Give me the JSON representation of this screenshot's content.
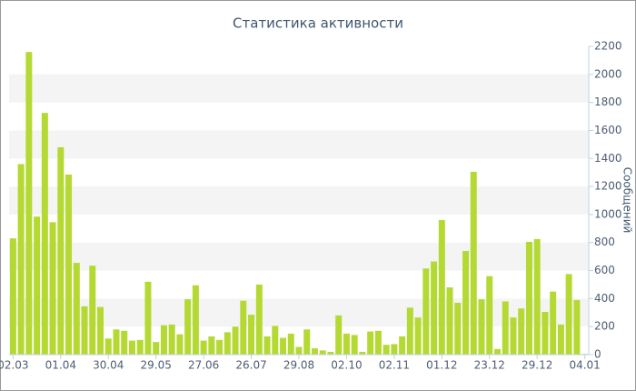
{
  "chart_data": {
    "type": "bar",
    "title": "Статистика активности",
    "y_label": "Сообщений",
    "categories": [
      "02.03",
      null,
      null,
      null,
      null,
      null,
      "01.04",
      null,
      null,
      null,
      null,
      null,
      "30.04",
      null,
      null,
      null,
      null,
      null,
      "29.05",
      null,
      null,
      null,
      null,
      null,
      "27.06",
      null,
      null,
      null,
      null,
      null,
      "26.07",
      null,
      null,
      null,
      null,
      null,
      "29.08",
      null,
      null,
      null,
      null,
      null,
      "02.10",
      null,
      null,
      null,
      null,
      null,
      "02.11",
      null,
      null,
      null,
      null,
      null,
      "01.12",
      null,
      null,
      null,
      null,
      null,
      "23.12",
      null,
      null,
      null,
      null,
      null,
      "29.12",
      null,
      null,
      null,
      null,
      null,
      "04.01"
    ],
    "values": [
      830,
      1360,
      2160,
      985,
      1725,
      945,
      1480,
      1285,
      655,
      345,
      635,
      340,
      115,
      180,
      170,
      100,
      105,
      520,
      90,
      210,
      215,
      145,
      395,
      495,
      100,
      130,
      105,
      160,
      200,
      385,
      285,
      500,
      130,
      205,
      120,
      150,
      55,
      180,
      45,
      30,
      20,
      280,
      150,
      140,
      20,
      165,
      170,
      70,
      75,
      130,
      335,
      265,
      615,
      665,
      960,
      480,
      370,
      740,
      1305,
      395,
      560,
      40,
      380,
      265,
      330,
      805,
      825,
      305,
      450,
      215,
      575,
      390,
      5
    ],
    "color": "#b5d933",
    "ylim": [
      0,
      2200
    ],
    "yticks": [
      0,
      200,
      400,
      600,
      800,
      1000,
      1200,
      1400,
      1600,
      1800,
      2000,
      2200
    ],
    "grid": "bands",
    "y_axis_side": "right"
  }
}
